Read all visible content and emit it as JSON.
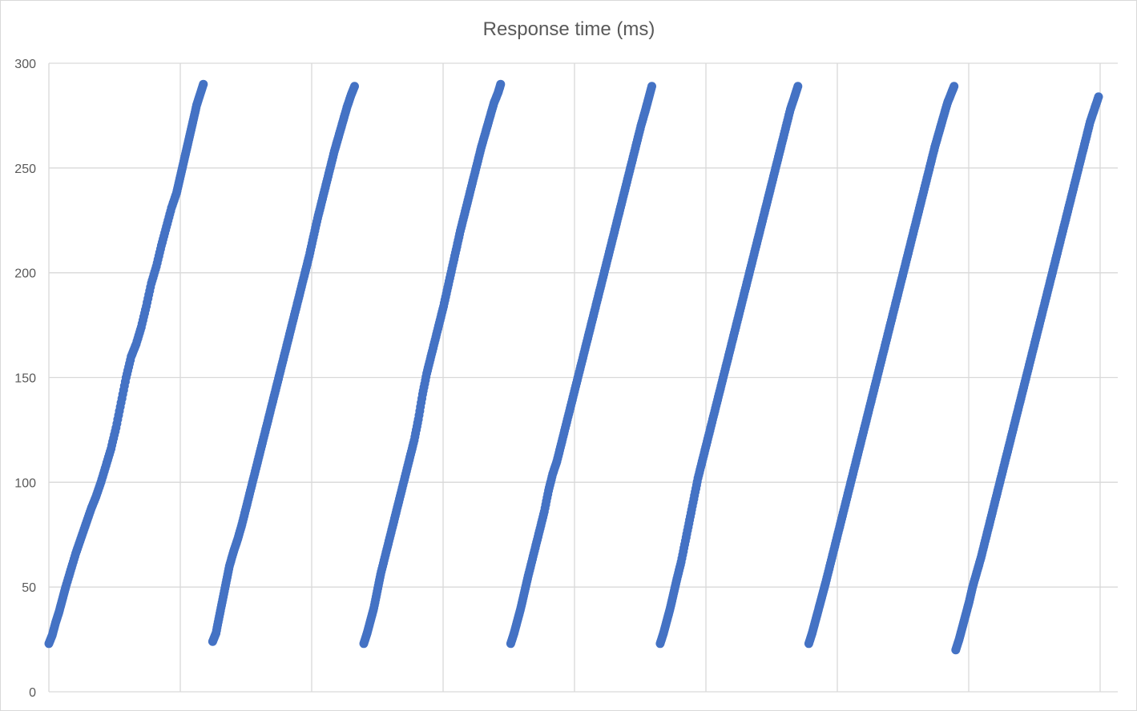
{
  "chart_data": {
    "type": "scatter",
    "title": "Response time (ms)",
    "xlabel": "",
    "ylabel": "",
    "ylim": [
      0,
      300
    ],
    "y_ticks": [
      "0",
      "50",
      "100",
      "150",
      "200",
      "250",
      "300"
    ],
    "x_axis_labels_shown": false,
    "grid": {
      "horizontal": true,
      "vertical": true,
      "vertical_divisions": 8
    },
    "legend": "none",
    "marker_color": "#4472c4",
    "series": [
      {
        "points": [
          [
            0.0,
            23
          ],
          [
            0.004,
            27
          ],
          [
            0.008,
            33
          ],
          [
            0.012,
            38
          ],
          [
            0.016,
            44
          ],
          [
            0.02,
            50
          ],
          [
            0.026,
            58
          ],
          [
            0.032,
            66
          ],
          [
            0.038,
            73
          ],
          [
            0.044,
            80
          ],
          [
            0.05,
            87
          ],
          [
            0.056,
            93
          ],
          [
            0.062,
            100
          ],
          [
            0.068,
            108
          ],
          [
            0.074,
            116
          ],
          [
            0.08,
            126
          ],
          [
            0.086,
            138
          ],
          [
            0.092,
            150
          ],
          [
            0.098,
            160
          ],
          [
            0.104,
            166
          ],
          [
            0.11,
            174
          ],
          [
            0.116,
            184
          ],
          [
            0.122,
            195
          ],
          [
            0.128,
            203
          ],
          [
            0.134,
            213
          ],
          [
            0.14,
            222
          ],
          [
            0.146,
            231
          ],
          [
            0.152,
            238
          ],
          [
            0.156,
            245
          ],
          [
            0.16,
            252
          ],
          [
            0.164,
            259
          ],
          [
            0.168,
            266
          ],
          [
            0.172,
            273
          ],
          [
            0.176,
            280
          ],
          [
            0.18,
            285
          ],
          [
            0.184,
            290
          ],
          [
            0.195,
            24
          ],
          [
            0.199,
            28
          ],
          [
            0.203,
            36
          ],
          [
            0.207,
            44
          ],
          [
            0.211,
            52
          ],
          [
            0.215,
            60
          ],
          [
            0.22,
            67
          ],
          [
            0.225,
            73
          ],
          [
            0.23,
            80
          ],
          [
            0.235,
            88
          ],
          [
            0.24,
            96
          ],
          [
            0.245,
            104
          ],
          [
            0.25,
            112
          ],
          [
            0.255,
            120
          ],
          [
            0.26,
            128
          ],
          [
            0.265,
            136
          ],
          [
            0.27,
            144
          ],
          [
            0.275,
            152
          ],
          [
            0.28,
            160
          ],
          [
            0.285,
            168
          ],
          [
            0.29,
            176
          ],
          [
            0.295,
            184
          ],
          [
            0.3,
            192
          ],
          [
            0.305,
            200
          ],
          [
            0.31,
            208
          ],
          [
            0.315,
            217
          ],
          [
            0.32,
            226
          ],
          [
            0.325,
            234
          ],
          [
            0.33,
            242
          ],
          [
            0.335,
            250
          ],
          [
            0.34,
            258
          ],
          [
            0.345,
            265
          ],
          [
            0.35,
            272
          ],
          [
            0.355,
            279
          ],
          [
            0.36,
            285
          ],
          [
            0.364,
            289
          ],
          [
            0.375,
            23
          ],
          [
            0.379,
            28
          ],
          [
            0.383,
            34
          ],
          [
            0.387,
            40
          ],
          [
            0.391,
            48
          ],
          [
            0.395,
            56
          ],
          [
            0.4,
            64
          ],
          [
            0.405,
            72
          ],
          [
            0.41,
            80
          ],
          [
            0.415,
            88
          ],
          [
            0.42,
            96
          ],
          [
            0.425,
            104
          ],
          [
            0.43,
            112
          ],
          [
            0.435,
            120
          ],
          [
            0.44,
            130
          ],
          [
            0.445,
            142
          ],
          [
            0.45,
            152
          ],
          [
            0.455,
            160
          ],
          [
            0.46,
            168
          ],
          [
            0.465,
            176
          ],
          [
            0.47,
            184
          ],
          [
            0.475,
            193
          ],
          [
            0.48,
            202
          ],
          [
            0.485,
            211
          ],
          [
            0.49,
            220
          ],
          [
            0.495,
            228
          ],
          [
            0.5,
            236
          ],
          [
            0.505,
            244
          ],
          [
            0.51,
            252
          ],
          [
            0.515,
            260
          ],
          [
            0.52,
            267
          ],
          [
            0.525,
            274
          ],
          [
            0.53,
            281
          ],
          [
            0.535,
            286
          ],
          [
            0.538,
            290
          ],
          [
            0.55,
            23
          ],
          [
            0.554,
            28
          ],
          [
            0.558,
            34
          ],
          [
            0.562,
            40
          ],
          [
            0.566,
            47
          ],
          [
            0.57,
            54
          ],
          [
            0.575,
            62
          ],
          [
            0.58,
            70
          ],
          [
            0.585,
            78
          ],
          [
            0.59,
            86
          ],
          [
            0.595,
            96
          ],
          [
            0.6,
            104
          ],
          [
            0.605,
            110
          ],
          [
            0.61,
            118
          ],
          [
            0.615,
            126
          ],
          [
            0.62,
            134
          ],
          [
            0.625,
            142
          ],
          [
            0.63,
            150
          ],
          [
            0.635,
            158
          ],
          [
            0.64,
            166
          ],
          [
            0.645,
            174
          ],
          [
            0.65,
            182
          ],
          [
            0.655,
            190
          ],
          [
            0.66,
            198
          ],
          [
            0.665,
            206
          ],
          [
            0.67,
            214
          ],
          [
            0.675,
            222
          ],
          [
            0.68,
            230
          ],
          [
            0.685,
            238
          ],
          [
            0.69,
            246
          ],
          [
            0.695,
            254
          ],
          [
            0.7,
            262
          ],
          [
            0.705,
            270
          ],
          [
            0.71,
            277
          ],
          [
            0.714,
            283
          ],
          [
            0.718,
            289
          ],
          [
            0.728,
            23
          ],
          [
            0.732,
            28
          ],
          [
            0.736,
            34
          ],
          [
            0.74,
            40
          ],
          [
            0.744,
            47
          ],
          [
            0.748,
            54
          ],
          [
            0.753,
            62
          ],
          [
            0.758,
            72
          ],
          [
            0.763,
            82
          ],
          [
            0.768,
            92
          ],
          [
            0.773,
            102
          ],
          [
            0.778,
            110
          ],
          [
            0.783,
            118
          ],
          [
            0.788,
            126
          ],
          [
            0.793,
            134
          ],
          [
            0.798,
            142
          ],
          [
            0.803,
            150
          ],
          [
            0.808,
            158
          ],
          [
            0.813,
            166
          ],
          [
            0.818,
            174
          ],
          [
            0.823,
            182
          ],
          [
            0.828,
            190
          ],
          [
            0.833,
            198
          ],
          [
            0.838,
            206
          ],
          [
            0.843,
            214
          ],
          [
            0.848,
            222
          ],
          [
            0.853,
            230
          ],
          [
            0.858,
            238
          ],
          [
            0.863,
            246
          ],
          [
            0.868,
            254
          ],
          [
            0.873,
            262
          ],
          [
            0.878,
            270
          ],
          [
            0.883,
            278
          ],
          [
            0.888,
            284
          ],
          [
            0.892,
            289
          ],
          [
            0.905,
            23
          ],
          [
            0.909,
            28
          ],
          [
            0.913,
            34
          ],
          [
            0.917,
            40
          ],
          [
            0.921,
            46
          ],
          [
            0.925,
            52
          ],
          [
            0.93,
            60
          ],
          [
            0.935,
            68
          ],
          [
            0.94,
            76
          ],
          [
            0.945,
            84
          ],
          [
            0.95,
            92
          ],
          [
            0.955,
            100
          ],
          [
            0.96,
            108
          ],
          [
            0.965,
            116
          ],
          [
            0.97,
            124
          ],
          [
            0.975,
            132
          ],
          [
            0.98,
            140
          ],
          [
            0.985,
            148
          ],
          [
            0.99,
            156
          ],
          [
            0.995,
            164
          ],
          [
            1.0,
            172
          ],
          [
            1.005,
            180
          ],
          [
            1.01,
            188
          ],
          [
            1.015,
            196
          ],
          [
            1.02,
            204
          ],
          [
            1.025,
            212
          ],
          [
            1.03,
            220
          ],
          [
            1.035,
            228
          ],
          [
            1.04,
            236
          ],
          [
            1.045,
            244
          ],
          [
            1.05,
            252
          ],
          [
            1.055,
            260
          ],
          [
            1.06,
            267
          ],
          [
            1.065,
            274
          ],
          [
            1.07,
            281
          ],
          [
            1.075,
            286
          ],
          [
            1.078,
            289
          ],
          [
            1.08,
            20
          ],
          [
            1.084,
            25
          ],
          [
            1.088,
            31
          ],
          [
            1.092,
            37
          ],
          [
            1.096,
            43
          ],
          [
            1.1,
            50
          ],
          [
            1.105,
            57
          ],
          [
            1.11,
            64
          ],
          [
            1.115,
            72
          ],
          [
            1.12,
            80
          ],
          [
            1.125,
            88
          ],
          [
            1.13,
            96
          ],
          [
            1.135,
            104
          ],
          [
            1.14,
            112
          ],
          [
            1.145,
            120
          ],
          [
            1.15,
            128
          ],
          [
            1.155,
            136
          ],
          [
            1.16,
            144
          ],
          [
            1.165,
            152
          ],
          [
            1.17,
            160
          ],
          [
            1.175,
            168
          ],
          [
            1.18,
            176
          ],
          [
            1.185,
            184
          ],
          [
            1.19,
            192
          ],
          [
            1.195,
            200
          ],
          [
            1.2,
            208
          ],
          [
            1.205,
            216
          ],
          [
            1.21,
            224
          ],
          [
            1.215,
            232
          ],
          [
            1.22,
            240
          ],
          [
            1.225,
            248
          ],
          [
            1.23,
            256
          ],
          [
            1.235,
            264
          ],
          [
            1.24,
            272
          ],
          [
            1.245,
            278
          ],
          [
            1.25,
            284
          ]
        ]
      }
    ]
  }
}
